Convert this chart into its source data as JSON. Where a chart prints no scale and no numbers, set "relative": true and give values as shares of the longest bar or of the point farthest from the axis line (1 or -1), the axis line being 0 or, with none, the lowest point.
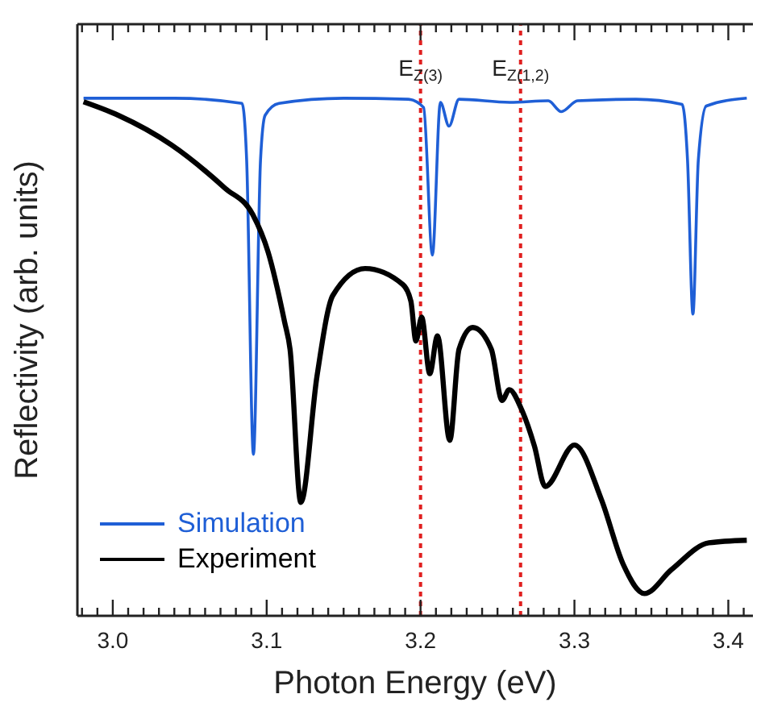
{
  "chart_data": {
    "type": "line",
    "xlabel": "Photon Energy (eV)",
    "ylabel": "Reflectivity (arb. units)",
    "relative": true,
    "xlim": [
      2.977,
      3.416
    ],
    "xticks": [
      {
        "value": 2.98,
        "label": null
      },
      {
        "value": 2.99,
        "label": null
      },
      {
        "value": 3.0,
        "label": "3.0"
      },
      {
        "value": 3.01,
        "label": null
      },
      {
        "value": 3.02,
        "label": null
      },
      {
        "value": 3.03,
        "label": null
      },
      {
        "value": 3.04,
        "label": null
      },
      {
        "value": 3.05,
        "label": null
      },
      {
        "value": 3.06,
        "label": null
      },
      {
        "value": 3.07,
        "label": null
      },
      {
        "value": 3.08,
        "label": null
      },
      {
        "value": 3.09,
        "label": null
      },
      {
        "value": 3.1,
        "label": "3.1"
      },
      {
        "value": 3.11,
        "label": null
      },
      {
        "value": 3.12,
        "label": null
      },
      {
        "value": 3.13,
        "label": null
      },
      {
        "value": 3.14,
        "label": null
      },
      {
        "value": 3.15,
        "label": null
      },
      {
        "value": 3.16,
        "label": null
      },
      {
        "value": 3.17,
        "label": null
      },
      {
        "value": 3.18,
        "label": null
      },
      {
        "value": 3.19,
        "label": null
      },
      {
        "value": 3.2,
        "label": "3.2"
      },
      {
        "value": 3.21,
        "label": null
      },
      {
        "value": 3.22,
        "label": null
      },
      {
        "value": 3.23,
        "label": null
      },
      {
        "value": 3.24,
        "label": null
      },
      {
        "value": 3.25,
        "label": null
      },
      {
        "value": 3.26,
        "label": null
      },
      {
        "value": 3.27,
        "label": null
      },
      {
        "value": 3.28,
        "label": null
      },
      {
        "value": 3.29,
        "label": null
      },
      {
        "value": 3.3,
        "label": "3.3"
      },
      {
        "value": 3.31,
        "label": null
      },
      {
        "value": 3.32,
        "label": null
      },
      {
        "value": 3.33,
        "label": null
      },
      {
        "value": 3.34,
        "label": null
      },
      {
        "value": 3.35,
        "label": null
      },
      {
        "value": 3.36,
        "label": null
      },
      {
        "value": 3.37,
        "label": null
      },
      {
        "value": 3.38,
        "label": null
      },
      {
        "value": 3.39,
        "label": null
      },
      {
        "value": 3.4,
        "label": "3.4"
      },
      {
        "value": 3.41,
        "label": null
      }
    ],
    "series": [
      {
        "name": "Simulation",
        "color": "#1f5fd6",
        "x": [
          2.981,
          3.04,
          3.084,
          3.087,
          3.0914,
          3.096,
          3.099,
          3.108,
          3.15,
          3.192,
          3.202,
          3.2077,
          3.2129,
          3.2185,
          3.225,
          3.258,
          3.283,
          3.2915,
          3.302,
          3.34,
          3.37,
          3.3735,
          3.377,
          3.3805,
          3.3857,
          3.412
        ],
        "values": [
          1.0,
          1.0,
          0.99,
          0.88,
          0.312,
          0.88,
          0.967,
          0.99,
          1.0,
          0.998,
          0.982,
          0.697,
          0.992,
          0.946,
          0.998,
          0.992,
          0.995,
          0.974,
          0.995,
          0.998,
          0.988,
          0.88,
          0.583,
          0.88,
          0.985,
          1.0
        ]
      },
      {
        "name": "Experiment",
        "color": "#000000",
        "x": [
          2.981,
          3.0035,
          3.038,
          3.073,
          3.091,
          3.101,
          3.1117,
          3.1152,
          3.1222,
          3.1327,
          3.143,
          3.164,
          3.1885,
          3.1937,
          3.197,
          3.2007,
          3.206,
          3.211,
          3.219,
          3.225,
          3.2339,
          3.246,
          3.253,
          3.2576,
          3.2653,
          3.274,
          3.281,
          3.3,
          3.3176,
          3.3316,
          3.3455,
          3.363,
          3.3874,
          3.412
        ],
        "values": [
          0.993,
          0.967,
          0.91,
          0.826,
          0.775,
          0.702,
          0.567,
          0.515,
          0.219,
          0.463,
          0.619,
          0.671,
          0.64,
          0.608,
          0.531,
          0.577,
          0.468,
          0.541,
          0.339,
          0.515,
          0.557,
          0.515,
          0.416,
          0.437,
          0.401,
          0.328,
          0.25,
          0.33,
          0.224,
          0.1,
          0.043,
          0.089,
          0.141,
          0.146
        ]
      }
    ],
    "ref_lines": [
      {
        "axis": "x",
        "value": 3.2,
        "label": "E$_{Z(3)}$",
        "color": "#e02020",
        "line_style": "dotted"
      },
      {
        "axis": "x",
        "value": 3.265,
        "label": "E$_{Z(1,2)}$",
        "color": "#e02020",
        "line_style": "dotted"
      }
    ],
    "legend": "bottom left",
    "grid": false,
    "marker": "none"
  }
}
